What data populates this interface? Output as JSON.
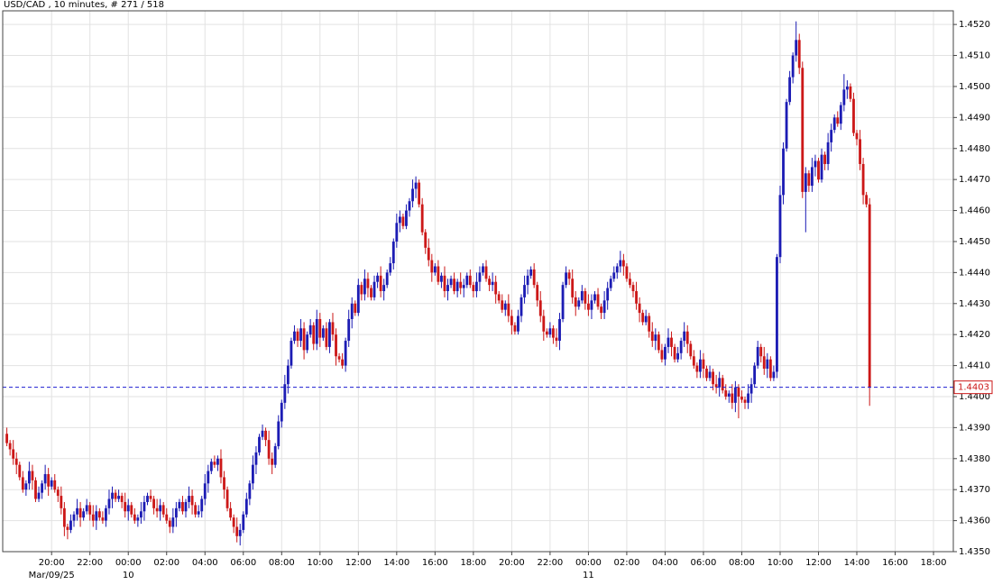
{
  "chart_data": {
    "type": "candlestick",
    "title": "USD/CAD , 10 minutes, # 271 / 518",
    "colors": {
      "up": "#1c1cb4",
      "down": "#cc1818",
      "last": "#1c1cd0"
    },
    "grid": true,
    "last_price_line": true,
    "xlim": [
      -1.3,
      296.2
    ],
    "ylim": [
      1.435,
      1.45244
    ],
    "yticks": [
      {
        "value": 1.435,
        "label": "1.4350"
      },
      {
        "value": 1.436,
        "label": "1.4360"
      },
      {
        "value": 1.437,
        "label": "1.4370"
      },
      {
        "value": 1.438,
        "label": "1.4380"
      },
      {
        "value": 1.439,
        "label": "1.4390"
      },
      {
        "value": 1.44,
        "label": "1.4400"
      },
      {
        "value": 1.441,
        "label": "1.4410"
      },
      {
        "value": 1.442,
        "label": "1.4420"
      },
      {
        "value": 1.443,
        "label": "1.4430"
      },
      {
        "value": 1.444,
        "label": "1.4440"
      },
      {
        "value": 1.445,
        "label": "1.4450"
      },
      {
        "value": 1.446,
        "label": "1.4460"
      },
      {
        "value": 1.447,
        "label": "1.4470"
      },
      {
        "value": 1.448,
        "label": "1.4480"
      },
      {
        "value": 1.449,
        "label": "1.4490"
      },
      {
        "value": 1.45,
        "label": "1.4500"
      },
      {
        "value": 1.451,
        "label": "1.4510"
      },
      {
        "value": 1.452,
        "label": "1.4520"
      }
    ],
    "xticks": [
      {
        "value": 14,
        "label": "20:00"
      },
      {
        "value": 26,
        "label": "22:00"
      },
      {
        "value": 38,
        "label": "00:00"
      },
      {
        "value": 50,
        "label": "02:00"
      },
      {
        "value": 62,
        "label": "04:00"
      },
      {
        "value": 74,
        "label": "06:00"
      },
      {
        "value": 86,
        "label": "08:00"
      },
      {
        "value": 98,
        "label": "10:00"
      },
      {
        "value": 110,
        "label": "12:00"
      },
      {
        "value": 122,
        "label": "14:00"
      },
      {
        "value": 134,
        "label": "16:00"
      },
      {
        "value": 146,
        "label": "18:00"
      },
      {
        "value": 158,
        "label": "20:00"
      },
      {
        "value": 170,
        "label": "22:00"
      },
      {
        "value": 182,
        "label": "00:00"
      },
      {
        "value": 194,
        "label": "02:00"
      },
      {
        "value": 206,
        "label": "04:00"
      },
      {
        "value": 218,
        "label": "06:00"
      },
      {
        "value": 230,
        "label": "08:00"
      },
      {
        "value": 242,
        "label": "10:00"
      },
      {
        "value": 254,
        "label": "12:00"
      },
      {
        "value": 266,
        "label": "14:00"
      },
      {
        "value": 278,
        "label": "16:00"
      },
      {
        "value": 290,
        "label": "18:00"
      }
    ],
    "date_labels": [
      {
        "value": 14,
        "label": "Mar/09/25"
      },
      {
        "value": 38,
        "label": "10"
      },
      {
        "value": 182,
        "label": "11"
      }
    ],
    "open": [
      1.4388,
      1.4385,
      1.4383,
      1.438,
      1.4378,
      1.4374,
      1.437,
      1.4372,
      1.4376,
      1.4373,
      1.4367,
      1.4369,
      1.4372,
      1.4375,
      1.4371,
      1.4373,
      1.437,
      1.4368,
      1.4364,
      1.4358,
      1.4357,
      1.436,
      1.4362,
      1.4364,
      1.4361,
      1.4363,
      1.4365,
      1.4362,
      1.436,
      1.4363,
      1.4361,
      1.436,
      1.4364,
      1.4367,
      1.4369,
      1.4367,
      1.4368,
      1.4366,
      1.4363,
      1.4365,
      1.4362,
      1.436,
      1.4361,
      1.4363,
      1.4366,
      1.4368,
      1.4367,
      1.4364,
      1.4363,
      1.4365,
      1.4362,
      1.436,
      1.4358,
      1.4361,
      1.4364,
      1.4366,
      1.4363,
      1.4366,
      1.4368,
      1.4365,
      1.4362,
      1.4363,
      1.4367,
      1.4372,
      1.4376,
      1.4379,
      1.4378,
      1.438,
      1.4374,
      1.437,
      1.4364,
      1.4361,
      1.4358,
      1.4355,
      1.4357,
      1.4362,
      1.4367,
      1.4372,
      1.4378,
      1.4382,
      1.4387,
      1.4389,
      1.4386,
      1.438,
      1.4378,
      1.4384,
      1.4392,
      1.4398,
      1.4404,
      1.441,
      1.4418,
      1.4421,
      1.4418,
      1.4422,
      1.4415,
      1.442,
      1.4423,
      1.4417,
      1.4425,
      1.4419,
      1.4422,
      1.4416,
      1.4424,
      1.442,
      1.4413,
      1.4412,
      1.441,
      1.4418,
      1.4425,
      1.443,
      1.4427,
      1.4436,
      1.4433,
      1.4438,
      1.4435,
      1.4432,
      1.4437,
      1.4439,
      1.4434,
      1.4436,
      1.444,
      1.4443,
      1.445,
      1.4456,
      1.4458,
      1.4455,
      1.446,
      1.4463,
      1.4467,
      1.4469,
      1.4462,
      1.4453,
      1.4448,
      1.4444,
      1.444,
      1.4442,
      1.4437,
      1.4439,
      1.4434,
      1.4436,
      1.4438,
      1.4434,
      1.4437,
      1.4435,
      1.4436,
      1.4439,
      1.4436,
      1.4434,
      1.4437,
      1.444,
      1.4442,
      1.4438,
      1.4436,
      1.4437,
      1.4433,
      1.4431,
      1.4428,
      1.443,
      1.4426,
      1.4423,
      1.4421,
      1.4426,
      1.4432,
      1.4436,
      1.4439,
      1.4441,
      1.4436,
      1.4431,
      1.4426,
      1.4421,
      1.442,
      1.4422,
      1.4419,
      1.4418,
      1.4425,
      1.4436,
      1.444,
      1.4438,
      1.4432,
      1.4429,
      1.4431,
      1.4434,
      1.443,
      1.4428,
      1.4431,
      1.4433,
      1.4429,
      1.4427,
      1.4431,
      1.4435,
      1.4438,
      1.444,
      1.4442,
      1.4444,
      1.4442,
      1.4438,
      1.4436,
      1.4434,
      1.443,
      1.4427,
      1.4424,
      1.4426,
      1.4421,
      1.4418,
      1.442,
      1.4415,
      1.4412,
      1.4416,
      1.4419,
      1.4416,
      1.4412,
      1.4414,
      1.4418,
      1.4421,
      1.4417,
      1.4413,
      1.441,
      1.4408,
      1.4412,
      1.4409,
      1.4406,
      1.4408,
      1.4404,
      1.4403,
      1.4406,
      1.4402,
      1.44,
      1.4401,
      1.4398,
      1.4403,
      1.44,
      1.4399,
      1.4398,
      1.4401,
      1.4404,
      1.441,
      1.4416,
      1.4413,
      1.4409,
      1.4412,
      1.4406,
      1.4408,
      1.4445,
      1.4465,
      1.448,
      1.4495,
      1.4503,
      1.451,
      1.4515,
      1.4506,
      1.4466,
      1.4472,
      1.4468,
      1.4474,
      1.4476,
      1.447,
      1.4478,
      1.4475,
      1.4482,
      1.4486,
      1.449,
      1.4488,
      1.4494,
      1.4499,
      1.45,
      1.4496,
      1.4485,
      1.4483,
      1.4475,
      1.4465,
      1.4462
    ],
    "high": [
      1.439,
      1.4386,
      1.4386,
      1.4382,
      1.4379,
      1.4376,
      1.4373,
      1.4379,
      1.4378,
      1.4374,
      1.4371,
      1.4373,
      1.4378,
      1.4377,
      1.4374,
      1.4375,
      1.4371,
      1.4371,
      1.4366,
      1.4359,
      1.4362,
      1.4363,
      1.4367,
      1.4366,
      1.4364,
      1.4367,
      1.4366,
      1.4365,
      1.4365,
      1.4364,
      1.4363,
      1.4365,
      1.437,
      1.4371,
      1.437,
      1.437,
      1.4369,
      1.4369,
      1.4367,
      1.4366,
      1.4364,
      1.4362,
      1.4366,
      1.4368,
      1.4369,
      1.437,
      1.4368,
      1.4367,
      1.4367,
      1.4366,
      1.4364,
      1.4361,
      1.4364,
      1.4366,
      1.4367,
      1.4368,
      1.4367,
      1.4371,
      1.437,
      1.4366,
      1.4365,
      1.4368,
      1.4375,
      1.4378,
      1.438,
      1.4381,
      1.4381,
      1.4383,
      1.4376,
      1.4371,
      1.4366,
      1.4362,
      1.4361,
      1.4359,
      1.4363,
      1.4369,
      1.4373,
      1.4381,
      1.4384,
      1.4388,
      1.4391,
      1.439,
      1.4389,
      1.4382,
      1.4385,
      1.4394,
      1.4399,
      1.4407,
      1.4412,
      1.4419,
      1.4423,
      1.4422,
      1.4425,
      1.4424,
      1.4421,
      1.4425,
      1.4424,
      1.4428,
      1.4427,
      1.4423,
      1.4424,
      1.4425,
      1.4427,
      1.4422,
      1.4414,
      1.4414,
      1.4419,
      1.4428,
      1.4432,
      1.4431,
      1.4438,
      1.4437,
      1.4441,
      1.444,
      1.4436,
      1.4439,
      1.444,
      1.4442,
      1.4438,
      1.4441,
      1.4445,
      1.4451,
      1.4459,
      1.446,
      1.4459,
      1.4462,
      1.4464,
      1.447,
      1.4471,
      1.447,
      1.4464,
      1.4454,
      1.4451,
      1.4446,
      1.4443,
      1.4444,
      1.444,
      1.4442,
      1.4438,
      1.4439,
      1.444,
      1.4438,
      1.444,
      1.4438,
      1.444,
      1.4441,
      1.4437,
      1.444,
      1.4442,
      1.4443,
      1.4444,
      1.4439,
      1.444,
      1.4439,
      1.4434,
      1.4433,
      1.4431,
      1.4433,
      1.4428,
      1.4424,
      1.4428,
      1.4433,
      1.4439,
      1.4441,
      1.4442,
      1.4443,
      1.4437,
      1.4434,
      1.4428,
      1.4422,
      1.4424,
      1.4423,
      1.4422,
      1.4427,
      1.4437,
      1.4442,
      1.4441,
      1.4441,
      1.4434,
      1.4432,
      1.4436,
      1.4435,
      1.4433,
      1.4433,
      1.4434,
      1.4435,
      1.443,
      1.4434,
      1.4437,
      1.4439,
      1.4442,
      1.4443,
      1.4447,
      1.4446,
      1.4443,
      1.444,
      1.4437,
      1.4437,
      1.4432,
      1.4428,
      1.4428,
      1.4427,
      1.4424,
      1.4422,
      1.4421,
      1.4417,
      1.4417,
      1.4422,
      1.4421,
      1.4417,
      1.4416,
      1.4419,
      1.4424,
      1.4423,
      1.4418,
      1.4415,
      1.4411,
      1.4415,
      1.4414,
      1.441,
      1.441,
      1.4409,
      1.4407,
      1.4408,
      1.4407,
      1.4404,
      1.4402,
      1.4404,
      1.4405,
      1.4404,
      1.4402,
      1.44,
      1.4404,
      1.4406,
      1.4411,
      1.4418,
      1.4417,
      1.4416,
      1.4414,
      1.4413,
      1.441,
      1.4446,
      1.4468,
      1.4482,
      1.4496,
      1.4505,
      1.4511,
      1.4521,
      1.4517,
      1.4508,
      1.4474,
      1.4473,
      1.4477,
      1.4478,
      1.4477,
      1.448,
      1.4479,
      1.4485,
      1.4488,
      1.4491,
      1.4492,
      1.4495,
      1.4504,
      1.4502,
      1.4501,
      1.4498,
      1.4486,
      1.4486,
      1.4477,
      1.4466,
      1.4464
    ],
    "low": [
      1.4384,
      1.4381,
      1.4378,
      1.4375,
      1.4373,
      1.4369,
      1.4368,
      1.437,
      1.437,
      1.4366,
      1.4366,
      1.4367,
      1.437,
      1.4368,
      1.437,
      1.4369,
      1.4366,
      1.4362,
      1.4355,
      1.4354,
      1.4356,
      1.4358,
      1.436,
      1.4358,
      1.436,
      1.4362,
      1.436,
      1.4358,
      1.4357,
      1.436,
      1.4359,
      1.4358,
      1.4362,
      1.4364,
      1.4366,
      1.4366,
      1.4364,
      1.4361,
      1.436,
      1.4361,
      1.4359,
      1.4358,
      1.4359,
      1.436,
      1.4365,
      1.4366,
      1.4362,
      1.4361,
      1.436,
      1.4361,
      1.4359,
      1.4356,
      1.4356,
      1.4358,
      1.4363,
      1.4362,
      1.4361,
      1.4364,
      1.4362,
      1.4361,
      1.4361,
      1.4361,
      1.4365,
      1.4369,
      1.4375,
      1.4377,
      1.4376,
      1.4372,
      1.4367,
      1.4363,
      1.436,
      1.4356,
      1.4353,
      1.4352,
      1.4356,
      1.4361,
      1.4365,
      1.437,
      1.4375,
      1.4381,
      1.4386,
      1.4384,
      1.4378,
      1.4375,
      1.4377,
      1.4383,
      1.439,
      1.4396,
      1.4401,
      1.4409,
      1.4417,
      1.4416,
      1.4416,
      1.4412,
      1.4414,
      1.4419,
      1.4415,
      1.4415,
      1.4416,
      1.4418,
      1.4415,
      1.4414,
      1.4418,
      1.441,
      1.4411,
      1.4409,
      1.4408,
      1.4416,
      1.4422,
      1.4426,
      1.4426,
      1.4431,
      1.4431,
      1.4432,
      1.4431,
      1.4431,
      1.4435,
      1.4432,
      1.4431,
      1.4435,
      1.4439,
      1.4441,
      1.4448,
      1.4453,
      1.4454,
      1.4454,
      1.4458,
      1.4461,
      1.4464,
      1.4461,
      1.4452,
      1.4446,
      1.4442,
      1.4437,
      1.4439,
      1.4436,
      1.4435,
      1.4432,
      1.4431,
      1.4435,
      1.4433,
      1.4432,
      1.4433,
      1.4432,
      1.4435,
      1.4435,
      1.4432,
      1.4432,
      1.4434,
      1.4439,
      1.4437,
      1.4434,
      1.4434,
      1.443,
      1.443,
      1.4427,
      1.4426,
      1.4424,
      1.442,
      1.442,
      1.442,
      1.4424,
      1.443,
      1.4433,
      1.4438,
      1.4435,
      1.4429,
      1.4424,
      1.4418,
      1.4419,
      1.4419,
      1.4417,
      1.4416,
      1.4415,
      1.4424,
      1.4435,
      1.4436,
      1.443,
      1.4426,
      1.4428,
      1.443,
      1.4428,
      1.4426,
      1.4425,
      1.443,
      1.4428,
      1.4425,
      1.4425,
      1.4428,
      1.4434,
      1.4437,
      1.4438,
      1.444,
      1.4439,
      1.4437,
      1.4435,
      1.4432,
      1.4428,
      1.4424,
      1.4423,
      1.4423,
      1.4419,
      1.4416,
      1.4415,
      1.4414,
      1.4411,
      1.441,
      1.4414,
      1.4413,
      1.4411,
      1.4411,
      1.4412,
      1.4416,
      1.4414,
      1.4412,
      1.4409,
      1.4406,
      1.4406,
      1.4406,
      1.4405,
      1.4405,
      1.4402,
      1.4401,
      1.44,
      1.4401,
      1.4399,
      1.4398,
      1.4396,
      1.4395,
      1.4393,
      1.4398,
      1.4396,
      1.4396,
      1.4398,
      1.4403,
      1.4409,
      1.4411,
      1.4407,
      1.4406,
      1.4405,
      1.4405,
      1.4406,
      1.4443,
      1.4462,
      1.4479,
      1.4494,
      1.4501,
      1.4508,
      1.4504,
      1.4464,
      1.4453,
      1.4466,
      1.4466,
      1.4471,
      1.4469,
      1.4469,
      1.4473,
      1.4473,
      1.4479,
      1.4485,
      1.4487,
      1.4486,
      1.4492,
      1.4496,
      1.4495,
      1.4484,
      1.4481,
      1.4473,
      1.4462,
      1.4461,
      1.4397
    ],
    "close": [
      1.4385,
      1.4383,
      1.438,
      1.4378,
      1.4374,
      1.437,
      1.4372,
      1.4376,
      1.4373,
      1.4367,
      1.4369,
      1.4372,
      1.4375,
      1.4371,
      1.4373,
      1.437,
      1.4368,
      1.4364,
      1.4358,
      1.4357,
      1.436,
      1.4362,
      1.4364,
      1.4361,
      1.4363,
      1.4365,
      1.4362,
      1.436,
      1.4363,
      1.4361,
      1.436,
      1.4364,
      1.4367,
      1.4369,
      1.4367,
      1.4368,
      1.4366,
      1.4363,
      1.4365,
      1.4362,
      1.436,
      1.4361,
      1.4363,
      1.4366,
      1.4368,
      1.4367,
      1.4364,
      1.4363,
      1.4365,
      1.4362,
      1.436,
      1.4358,
      1.4361,
      1.4364,
      1.4366,
      1.4363,
      1.4366,
      1.4368,
      1.4365,
      1.4362,
      1.4363,
      1.4367,
      1.4372,
      1.4376,
      1.4379,
      1.4378,
      1.438,
      1.4374,
      1.437,
      1.4364,
      1.4361,
      1.4358,
      1.4355,
      1.4357,
      1.4362,
      1.4367,
      1.4372,
      1.4378,
      1.4382,
      1.4387,
      1.4389,
      1.4386,
      1.438,
      1.4378,
      1.4384,
      1.4392,
      1.4398,
      1.4404,
      1.441,
      1.4418,
      1.4421,
      1.4418,
      1.4422,
      1.4415,
      1.442,
      1.4423,
      1.4417,
      1.4425,
      1.4419,
      1.4422,
      1.4416,
      1.4424,
      1.442,
      1.4413,
      1.4412,
      1.441,
      1.4418,
      1.4425,
      1.443,
      1.4427,
      1.4436,
      1.4433,
      1.4438,
      1.4435,
      1.4432,
      1.4437,
      1.4439,
      1.4434,
      1.4436,
      1.444,
      1.4443,
      1.445,
      1.4456,
      1.4458,
      1.4455,
      1.446,
      1.4463,
      1.4467,
      1.4469,
      1.4462,
      1.4453,
      1.4448,
      1.4444,
      1.444,
      1.4442,
      1.4437,
      1.4439,
      1.4434,
      1.4436,
      1.4438,
      1.4434,
      1.4437,
      1.4435,
      1.4436,
      1.4439,
      1.4436,
      1.4434,
      1.4437,
      1.444,
      1.4442,
      1.4438,
      1.4436,
      1.4437,
      1.4433,
      1.4431,
      1.4428,
      1.443,
      1.4426,
      1.4423,
      1.4421,
      1.4426,
      1.4432,
      1.4436,
      1.4439,
      1.4441,
      1.4436,
      1.4431,
      1.4426,
      1.4421,
      1.442,
      1.4422,
      1.4419,
      1.4418,
      1.4425,
      1.4436,
      1.444,
      1.4438,
      1.4432,
      1.4429,
      1.4431,
      1.4434,
      1.443,
      1.4428,
      1.4431,
      1.4433,
      1.4429,
      1.4427,
      1.4431,
      1.4435,
      1.4438,
      1.444,
      1.4442,
      1.4444,
      1.4442,
      1.4438,
      1.4436,
      1.4434,
      1.443,
      1.4427,
      1.4424,
      1.4426,
      1.4421,
      1.4418,
      1.442,
      1.4415,
      1.4412,
      1.4416,
      1.4419,
      1.4416,
      1.4412,
      1.4414,
      1.4418,
      1.4421,
      1.4417,
      1.4413,
      1.441,
      1.4408,
      1.4412,
      1.4409,
      1.4406,
      1.4408,
      1.4404,
      1.4403,
      1.4406,
      1.4402,
      1.44,
      1.4401,
      1.4398,
      1.4403,
      1.44,
      1.4399,
      1.4398,
      1.4401,
      1.4404,
      1.441,
      1.4416,
      1.4413,
      1.4409,
      1.4412,
      1.4406,
      1.4408,
      1.4445,
      1.4465,
      1.448,
      1.4495,
      1.4503,
      1.451,
      1.4515,
      1.4506,
      1.4466,
      1.4472,
      1.4468,
      1.4474,
      1.4476,
      1.447,
      1.4478,
      1.4475,
      1.4482,
      1.4486,
      1.449,
      1.4488,
      1.4494,
      1.4499,
      1.45,
      1.4496,
      1.4485,
      1.4483,
      1.4475,
      1.4465,
      1.4462,
      1.4403
    ]
  }
}
